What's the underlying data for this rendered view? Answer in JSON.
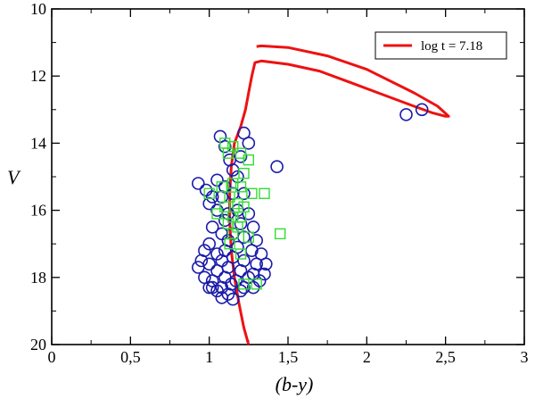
{
  "chart_data": {
    "type": "scatter",
    "title": "",
    "xlabel": "(b-y)",
    "ylabel": "V",
    "xlim": [
      0,
      3
    ],
    "ylim": [
      10,
      20
    ],
    "y_inverted": true,
    "x_ticks": [
      "0",
      "0,5",
      "1",
      "1,5",
      "2",
      "2,5",
      "3"
    ],
    "x_tick_values": [
      0,
      0.5,
      1,
      1.5,
      2,
      2.5,
      3
    ],
    "y_ticks": [
      "10",
      "12",
      "14",
      "16",
      "18",
      "20"
    ],
    "y_tick_values": [
      10,
      12,
      14,
      16,
      18,
      20
    ],
    "colors": {
      "isochrone": "#ee1111",
      "circles": "#1a1aaa",
      "squares": "#33dd33"
    },
    "series": [
      {
        "name": "log t = 7.18",
        "kind": "line",
        "points": [
          [
            1.25,
            20.0
          ],
          [
            1.22,
            19.5
          ],
          [
            1.19,
            18.8
          ],
          [
            1.16,
            18.0
          ],
          [
            1.14,
            17.2
          ],
          [
            1.13,
            16.3
          ],
          [
            1.13,
            15.5
          ],
          [
            1.14,
            14.7
          ],
          [
            1.16,
            14.0
          ],
          [
            1.2,
            13.5
          ],
          [
            1.23,
            13.0
          ],
          [
            1.25,
            12.5
          ],
          [
            1.27,
            12.0
          ],
          [
            1.29,
            11.6
          ],
          [
            1.33,
            11.55
          ],
          [
            1.5,
            11.65
          ],
          [
            1.7,
            11.85
          ],
          [
            1.9,
            12.2
          ],
          [
            2.1,
            12.55
          ],
          [
            2.3,
            12.9
          ],
          [
            2.42,
            13.1
          ],
          [
            2.5,
            13.2
          ],
          [
            2.52,
            13.2
          ],
          [
            2.45,
            12.9
          ],
          [
            2.3,
            12.5
          ],
          [
            2.0,
            11.8
          ],
          [
            1.75,
            11.4
          ],
          [
            1.5,
            11.15
          ],
          [
            1.33,
            11.1
          ],
          [
            1.3,
            11.12
          ]
        ]
      },
      {
        "name": "open circles",
        "kind": "scatter-circle",
        "points": [
          [
            2.25,
            13.15
          ],
          [
            2.35,
            13.0
          ],
          [
            1.43,
            14.7
          ],
          [
            1.07,
            13.8
          ],
          [
            1.22,
            13.7
          ],
          [
            1.25,
            14.0
          ],
          [
            1.1,
            14.1
          ],
          [
            1.13,
            14.5
          ],
          [
            1.2,
            14.4
          ],
          [
            1.15,
            14.8
          ],
          [
            1.18,
            15.0
          ],
          [
            1.1,
            15.3
          ],
          [
            1.05,
            15.1
          ],
          [
            0.93,
            15.2
          ],
          [
            0.98,
            15.4
          ],
          [
            1.02,
            15.6
          ],
          [
            1.08,
            15.6
          ],
          [
            1.15,
            15.5
          ],
          [
            1.22,
            15.5
          ],
          [
            1.0,
            15.8
          ],
          [
            1.05,
            16.0
          ],
          [
            1.12,
            16.1
          ],
          [
            1.18,
            16.0
          ],
          [
            1.25,
            16.1
          ],
          [
            1.1,
            16.3
          ],
          [
            1.2,
            16.4
          ],
          [
            1.28,
            16.5
          ],
          [
            1.02,
            16.5
          ],
          [
            1.08,
            16.7
          ],
          [
            1.15,
            16.7
          ],
          [
            1.22,
            16.8
          ],
          [
            1.3,
            16.9
          ],
          [
            1.0,
            17.0
          ],
          [
            1.12,
            16.9
          ],
          [
            0.97,
            17.2
          ],
          [
            1.05,
            17.3
          ],
          [
            1.1,
            17.2
          ],
          [
            1.18,
            17.1
          ],
          [
            1.27,
            17.2
          ],
          [
            1.33,
            17.3
          ],
          [
            0.95,
            17.5
          ],
          [
            1.0,
            17.6
          ],
          [
            1.08,
            17.5
          ],
          [
            1.15,
            17.4
          ],
          [
            1.22,
            17.5
          ],
          [
            1.3,
            17.6
          ],
          [
            1.36,
            17.6
          ],
          [
            0.93,
            17.7
          ],
          [
            1.05,
            17.8
          ],
          [
            1.12,
            17.7
          ],
          [
            1.2,
            17.8
          ],
          [
            1.28,
            17.9
          ],
          [
            1.35,
            17.9
          ],
          [
            0.97,
            18.0
          ],
          [
            1.02,
            18.1
          ],
          [
            1.1,
            18.0
          ],
          [
            1.17,
            18.1
          ],
          [
            1.25,
            18.0
          ],
          [
            1.32,
            18.1
          ],
          [
            1.0,
            18.3
          ],
          [
            1.08,
            18.3
          ],
          [
            1.14,
            18.2
          ],
          [
            1.22,
            18.3
          ],
          [
            1.28,
            18.3
          ],
          [
            1.05,
            18.4
          ],
          [
            1.12,
            18.5
          ],
          [
            1.2,
            18.4
          ],
          [
            1.08,
            18.6
          ],
          [
            1.15,
            18.65
          ],
          [
            1.02,
            18.3
          ]
        ]
      },
      {
        "name": "open squares",
        "kind": "scatter-square",
        "points": [
          [
            1.1,
            14.0
          ],
          [
            1.15,
            14.1
          ],
          [
            1.2,
            14.3
          ],
          [
            1.25,
            14.5
          ],
          [
            1.12,
            14.3
          ],
          [
            1.22,
            14.9
          ],
          [
            1.15,
            15.2
          ],
          [
            1.08,
            15.3
          ],
          [
            1.2,
            15.3
          ],
          [
            1.27,
            15.5
          ],
          [
            1.35,
            15.5
          ],
          [
            1.0,
            15.5
          ],
          [
            1.13,
            15.6
          ],
          [
            1.18,
            15.8
          ],
          [
            1.1,
            15.9
          ],
          [
            1.22,
            15.9
          ],
          [
            1.05,
            16.1
          ],
          [
            1.15,
            16.2
          ],
          [
            1.2,
            16.2
          ],
          [
            1.12,
            16.4
          ],
          [
            1.18,
            16.5
          ],
          [
            1.15,
            16.7
          ],
          [
            1.45,
            16.7
          ],
          [
            1.25,
            16.8
          ],
          [
            1.13,
            17.0
          ],
          [
            1.2,
            17.3
          ],
          [
            1.3,
            18.2
          ],
          [
            1.22,
            18.2
          ]
        ]
      }
    ],
    "legend": {
      "position": "top-right",
      "entries": [
        "log t = 7.18"
      ]
    }
  }
}
